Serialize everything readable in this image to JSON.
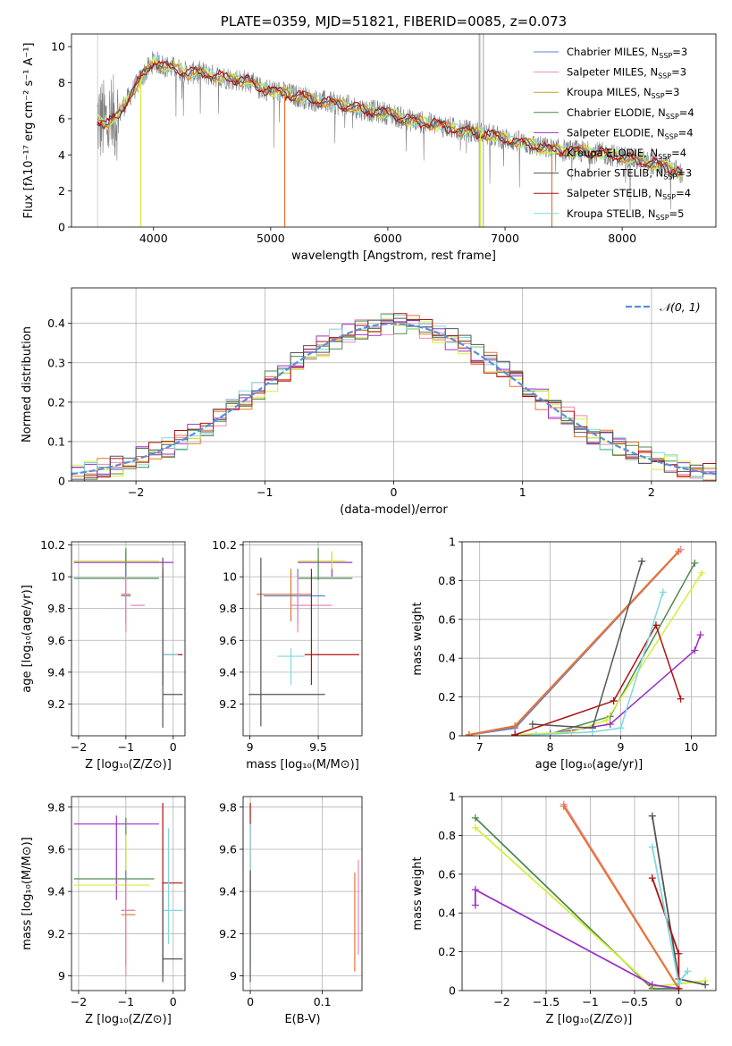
{
  "colors": {
    "chabrier_miles": "#5b7fd6",
    "salpeter_miles": "#e88ab8",
    "kroupa_miles": "#c9a227",
    "chabrier_elodie": "#4f8a4f",
    "salpeter_elodie": "#9b30c8",
    "kroupa_elodie": "#d4ef3b",
    "chabrier_stelib": "#555555",
    "salpeter_stelib": "#b01010",
    "kroupa_stelib": "#7fd8e0",
    "data": "#808080",
    "orange": "#e8742c",
    "normal": "#5b8fd6"
  },
  "chart_data": [
    {
      "id": "spectrum",
      "type": "line",
      "title": "PLATE=0359, MJD=51821, FIBERID=0085, z=0.073",
      "xlabel": "wavelength [Angstrom, rest frame]",
      "ylabel": "Flux [fλ10⁻¹⁷ erg cm⁻² s⁻¹ A⁻¹]",
      "xlim": [
        3300,
        8800
      ],
      "ylim": [
        0,
        10.7
      ],
      "xticks": [
        4000,
        5000,
        6000,
        7000,
        8000
      ],
      "yticks": [
        0,
        2,
        4,
        6,
        8,
        10
      ],
      "legend": "top-right",
      "legend_entries": [
        "Chabrier MILES, N_SSP=3",
        "Salpeter MILES, N_SSP=3",
        "Kroupa MILES, N_SSP=3",
        "Chabrier ELODIE, N_SSP=4",
        "Salpeter ELODIE, N_SSP=4",
        "Kroupa ELODIE, N_SSP=4",
        "Chabrier STELIB, N_SSP=3",
        "Salpeter STELIB, N_SSP=4",
        "Kroupa STELIB, N_SSP=5"
      ],
      "continuum": {
        "x": [
          3520,
          3600,
          3700,
          3800,
          3900,
          4000,
          4100,
          4200,
          4300,
          4400,
          4500,
          4600,
          4700,
          4800,
          4900,
          5000,
          5200,
          5400,
          5600,
          5800,
          6000,
          6200,
          6400,
          6600,
          6800,
          7000,
          7200,
          7400,
          7600,
          7800,
          8000,
          8200,
          8400,
          8500
        ],
        "y": [
          6.0,
          5.7,
          6.2,
          7.3,
          8.3,
          9.2,
          8.9,
          8.8,
          8.5,
          8.6,
          8.4,
          8.3,
          8.2,
          8.1,
          7.7,
          7.6,
          7.3,
          7.0,
          6.8,
          6.5,
          6.3,
          5.9,
          5.7,
          5.4,
          5.2,
          4.9,
          4.6,
          4.3,
          4.2,
          4.1,
          3.9,
          3.6,
          3.3,
          3.0
        ]
      }
    },
    {
      "id": "residuals",
      "type": "line",
      "xlabel": "(data-model)/error",
      "ylabel": "Normed distribution",
      "xlim": [
        -2.5,
        2.5
      ],
      "ylim": [
        0,
        0.49
      ],
      "xticks": [
        -2,
        -1,
        0,
        1,
        2
      ],
      "yticks": [
        0.0,
        0.1,
        0.2,
        0.3,
        0.4
      ],
      "legend": "top-right",
      "legend_entries": [
        "𝒩(0, 1)"
      ],
      "grid": true
    },
    {
      "id": "age-vs-Z",
      "type": "scatter",
      "xlabel": "Z [log₁₀(Z/Z⊙)]",
      "ylabel": "age  [log₁₀(age/yr)]",
      "xlim": [
        -2.15,
        0.25
      ],
      "ylim": [
        9.0,
        10.22
      ],
      "xticks": [
        -2,
        -1,
        0
      ],
      "yticks": [
        9.2,
        9.4,
        9.6,
        9.8,
        10.0,
        10.2
      ],
      "grid": true
    },
    {
      "id": "age-vs-mass",
      "type": "scatter",
      "xlabel": "mass [log₁₀(M/M⊙)]",
      "xlim": [
        8.95,
        9.82
      ],
      "ylim": [
        9.0,
        10.22
      ],
      "xticks": [
        9.0,
        9.5
      ],
      "yticks": [
        9.2,
        9.4,
        9.6,
        9.8,
        10.0,
        10.2
      ],
      "grid": true
    },
    {
      "id": "massweight-vs-age",
      "type": "line",
      "xlabel": "age  [log₁₀(age/yr)]",
      "ylabel": "mass weight",
      "xlim": [
        6.75,
        10.35
      ],
      "ylim": [
        0,
        1.0
      ],
      "xticks": [
        7,
        8,
        9,
        10
      ],
      "yticks": [
        0.0,
        0.2,
        0.4,
        0.6,
        0.8,
        1.0
      ],
      "grid": true
    },
    {
      "id": "mass-vs-Z",
      "type": "scatter",
      "xlabel": "Z [log₁₀(Z/Z⊙)]",
      "ylabel": "mass [log₁₀(M/M⊙)]",
      "xlim": [
        -2.15,
        0.25
      ],
      "ylim": [
        8.93,
        9.85
      ],
      "xticks": [
        -2,
        -1,
        0
      ],
      "yticks": [
        9.0,
        9.2,
        9.4,
        9.6,
        9.8
      ],
      "grid": true
    },
    {
      "id": "mass-vs-ebv",
      "type": "scatter",
      "xlabel": "E(B-V)",
      "xlim": [
        -0.01,
        0.155
      ],
      "ylim": [
        8.93,
        9.85
      ],
      "xticks": [
        0.0,
        0.1
      ],
      "yticks": [
        9.0,
        9.2,
        9.4,
        9.6,
        9.8
      ],
      "grid": true
    },
    {
      "id": "massweight-vs-Z",
      "type": "line",
      "xlabel": "Z [log₁₀(Z/Z⊙)]",
      "ylabel": "mass weight",
      "xlim": [
        -2.45,
        0.42
      ],
      "ylim": [
        0,
        1.0
      ],
      "xticks": [
        -2.0,
        -1.5,
        -1.0,
        -0.5,
        0.0
      ],
      "yticks": [
        0.0,
        0.2,
        0.4,
        0.6,
        0.8,
        1.0
      ],
      "grid": true
    }
  ]
}
